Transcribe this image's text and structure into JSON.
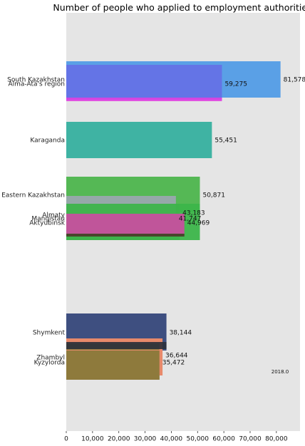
{
  "chart_data": {
    "type": "bar",
    "orientation": "horizontal",
    "title": "Number of people who applied to employment authorities",
    "annotation": "2018.0",
    "xlabel": "",
    "ylabel": "",
    "xlim": [
      0,
      89000
    ],
    "x_ticks": [
      0,
      10000,
      20000,
      30000,
      40000,
      50000,
      60000,
      70000,
      80000
    ],
    "x_tick_labels": [
      "0",
      "10,000",
      "20,000",
      "30,000",
      "40,000",
      "50,000",
      "60,000",
      "70,000",
      "80,000"
    ],
    "grid": false,
    "bars": [
      {
        "name": "South Kazakhstan",
        "value": 81578,
        "value_label": "81,578",
        "color": "#5aa0e6"
      },
      {
        "name": "Alma-Ata's region",
        "value": 59275,
        "value_label": "59,275",
        "color": "#6474e6"
      },
      {
        "name": "Karaganda",
        "value": 55451,
        "value_label": "55,451",
        "color": "#3fb3a3"
      },
      {
        "name": "Eastern Kazakhstan",
        "value": 50871,
        "value_label": "50,871",
        "color": "#55b855"
      },
      {
        "name": "Almaty",
        "value": 43183,
        "value_label": "43,183",
        "color": "#5c9c5c"
      },
      {
        "name": "Mangistau",
        "value": 41747,
        "value_label": "41,747",
        "color": "#a2a4b8"
      },
      {
        "name": "Aktyubinsk",
        "value": 44969,
        "value_label": "44,969",
        "color": "#c0559a"
      },
      {
        "name": "Shymkent",
        "value": 38144,
        "value_label": "38,144",
        "color": "#3e4f80"
      },
      {
        "name": "Zhambyl",
        "value": 36644,
        "value_label": "36,644",
        "color": "#e8896a"
      },
      {
        "name": "Kyzylorda",
        "value": 35472,
        "value_label": "35,472",
        "color": "#8e7a3c"
      }
    ]
  }
}
